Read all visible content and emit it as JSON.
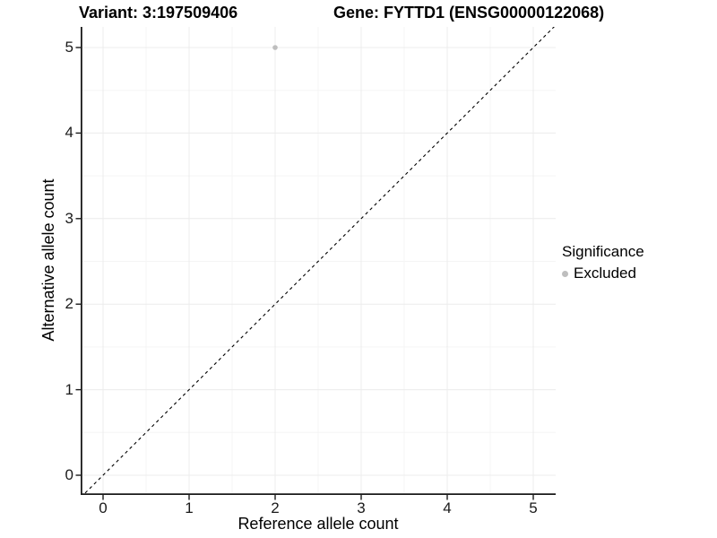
{
  "chart_data": {
    "type": "scatter",
    "title_left": "Variant: 3:197509406",
    "title_right": "Gene: FYTTD1 (ENSG00000122068)",
    "xlabel": "Reference allele count",
    "ylabel": "Alternative allele count",
    "x_ticks": [
      0,
      1,
      2,
      3,
      4,
      5
    ],
    "y_ticks": [
      0,
      1,
      2,
      3,
      4,
      5
    ],
    "xlim": [
      -0.26,
      5.26
    ],
    "ylim": [
      -0.23,
      5.24
    ],
    "grid": {
      "major": true,
      "minor": true
    },
    "grid_major_color": "#ececec",
    "grid_minor_color": "#f5f5f5",
    "axis_color": "#1a1a1a",
    "series": [
      {
        "name": "Excluded",
        "color": "#bebebe",
        "points": [
          [
            2,
            5
          ]
        ]
      }
    ],
    "reference_line": {
      "kind": "identity",
      "dashed": true,
      "color": "#000000"
    },
    "legend": {
      "position": "right",
      "title": "Significance",
      "entries": [
        {
          "label": "Excluded",
          "color": "#bebebe"
        }
      ]
    }
  }
}
